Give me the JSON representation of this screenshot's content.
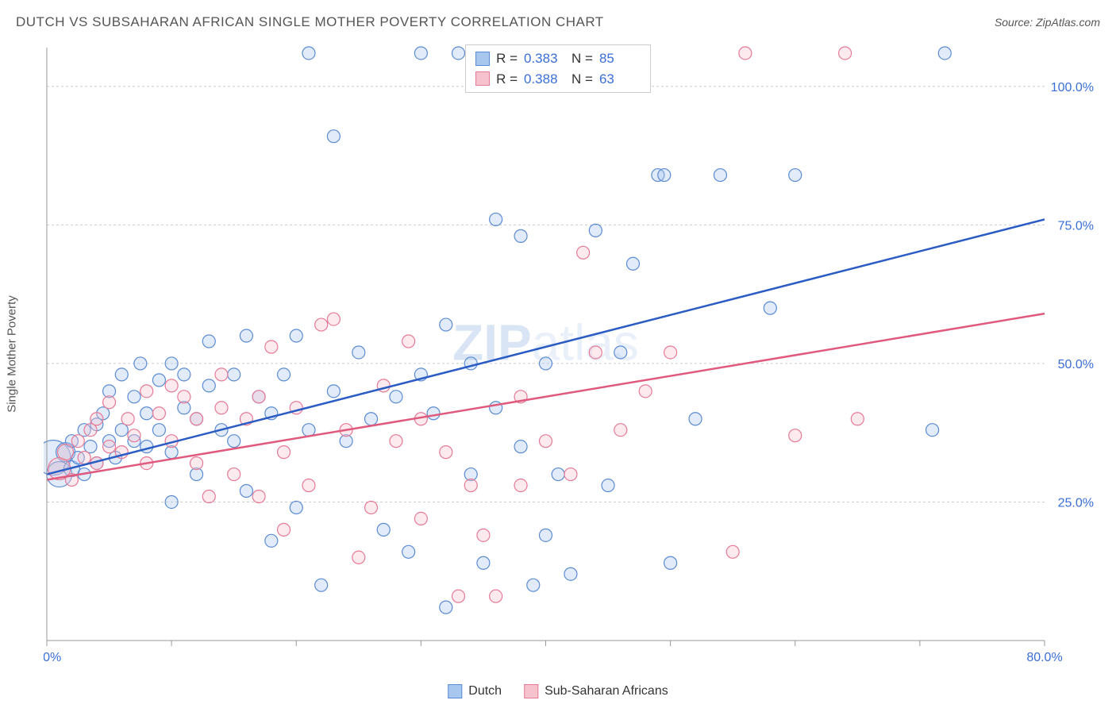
{
  "title": "DUTCH VS SUBSAHARAN AFRICAN SINGLE MOTHER POVERTY CORRELATION CHART",
  "source": "Source: ZipAtlas.com",
  "yaxis_label": "Single Mother Poverty",
  "watermark": {
    "bold": "ZIP",
    "light": "atlas"
  },
  "chart": {
    "type": "scatter",
    "background_color": "#ffffff",
    "grid_color": "#cccccc",
    "grid_dash": "3 3",
    "axis_color": "#999999",
    "xlim": [
      0,
      80
    ],
    "ylim": [
      0,
      107
    ],
    "xticks": [
      0,
      10,
      20,
      30,
      40,
      50,
      60,
      70,
      80
    ],
    "xtick_labels": {
      "0": "0.0%",
      "80": "80.0%"
    },
    "yticks": [
      25,
      50,
      75,
      100
    ],
    "ytick_labels": {
      "25": "25.0%",
      "50": "50.0%",
      "75": "75.0%",
      "100": "100.0%"
    },
    "label_color": "#3a6fd8",
    "label_fontsize": 16,
    "point_stroke_width": 1.2,
    "point_fill_opacity": 0.35,
    "series": [
      {
        "name": "Dutch",
        "fill": "#a8c7ee",
        "stroke": "#5b8bd4",
        "r_default": 8,
        "R": 0.383,
        "N": 85,
        "trend": {
          "x1": 0,
          "y1": 30,
          "x2": 80,
          "y2": 76,
          "color": "#2a5cc4"
        },
        "points": [
          {
            "x": 0.5,
            "y": 33,
            "r": 22
          },
          {
            "x": 1,
            "y": 30,
            "r": 16
          },
          {
            "x": 1.5,
            "y": 34,
            "r": 12
          },
          {
            "x": 2,
            "y": 31,
            "r": 10
          },
          {
            "x": 2,
            "y": 36
          },
          {
            "x": 2.5,
            "y": 33
          },
          {
            "x": 3,
            "y": 38
          },
          {
            "x": 3,
            "y": 30
          },
          {
            "x": 3.5,
            "y": 35
          },
          {
            "x": 4,
            "y": 39
          },
          {
            "x": 4,
            "y": 32
          },
          {
            "x": 4.5,
            "y": 41
          },
          {
            "x": 5,
            "y": 36
          },
          {
            "x": 5,
            "y": 45
          },
          {
            "x": 5.5,
            "y": 33
          },
          {
            "x": 6,
            "y": 48
          },
          {
            "x": 6,
            "y": 38
          },
          {
            "x": 7,
            "y": 36
          },
          {
            "x": 7,
            "y": 44
          },
          {
            "x": 7.5,
            "y": 50
          },
          {
            "x": 8,
            "y": 35
          },
          {
            "x": 8,
            "y": 41
          },
          {
            "x": 9,
            "y": 38
          },
          {
            "x": 9,
            "y": 47
          },
          {
            "x": 10,
            "y": 34
          },
          {
            "x": 10,
            "y": 50
          },
          {
            "x": 10,
            "y": 25
          },
          {
            "x": 11,
            "y": 42
          },
          {
            "x": 11,
            "y": 48
          },
          {
            "x": 12,
            "y": 30
          },
          {
            "x": 12,
            "y": 40
          },
          {
            "x": 13,
            "y": 46
          },
          {
            "x": 13,
            "y": 54
          },
          {
            "x": 14,
            "y": 38
          },
          {
            "x": 15,
            "y": 36
          },
          {
            "x": 15,
            "y": 48
          },
          {
            "x": 16,
            "y": 27
          },
          {
            "x": 16,
            "y": 55
          },
          {
            "x": 17,
            "y": 44
          },
          {
            "x": 18,
            "y": 18
          },
          {
            "x": 18,
            "y": 41
          },
          {
            "x": 19,
            "y": 48
          },
          {
            "x": 20,
            "y": 24
          },
          {
            "x": 20,
            "y": 55
          },
          {
            "x": 21,
            "y": 106
          },
          {
            "x": 21,
            "y": 38
          },
          {
            "x": 22,
            "y": 10
          },
          {
            "x": 23,
            "y": 91
          },
          {
            "x": 23,
            "y": 45
          },
          {
            "x": 24,
            "y": 36
          },
          {
            "x": 25,
            "y": 52
          },
          {
            "x": 26,
            "y": 40
          },
          {
            "x": 27,
            "y": 20
          },
          {
            "x": 28,
            "y": 44
          },
          {
            "x": 29,
            "y": 16
          },
          {
            "x": 30,
            "y": 48
          },
          {
            "x": 30,
            "y": 106
          },
          {
            "x": 31,
            "y": 41
          },
          {
            "x": 32,
            "y": 6
          },
          {
            "x": 32,
            "y": 57
          },
          {
            "x": 33,
            "y": 106
          },
          {
            "x": 34,
            "y": 50
          },
          {
            "x": 34,
            "y": 30
          },
          {
            "x": 35,
            "y": 14
          },
          {
            "x": 36,
            "y": 76
          },
          {
            "x": 36,
            "y": 42
          },
          {
            "x": 38,
            "y": 73
          },
          {
            "x": 38,
            "y": 35
          },
          {
            "x": 39,
            "y": 10
          },
          {
            "x": 40,
            "y": 50
          },
          {
            "x": 40,
            "y": 19
          },
          {
            "x": 41,
            "y": 30
          },
          {
            "x": 42,
            "y": 12
          },
          {
            "x": 44,
            "y": 74
          },
          {
            "x": 45,
            "y": 28
          },
          {
            "x": 46,
            "y": 52
          },
          {
            "x": 47,
            "y": 68
          },
          {
            "x": 49,
            "y": 84
          },
          {
            "x": 49.5,
            "y": 84
          },
          {
            "x": 50,
            "y": 14
          },
          {
            "x": 52,
            "y": 40
          },
          {
            "x": 54,
            "y": 84
          },
          {
            "x": 58,
            "y": 60
          },
          {
            "x": 60,
            "y": 84
          },
          {
            "x": 71,
            "y": 38
          },
          {
            "x": 72,
            "y": 106
          }
        ]
      },
      {
        "name": "Sub-Saharan Africans",
        "fill": "#f5c2cd",
        "stroke": "#e67a96",
        "r_default": 8,
        "R": 0.388,
        "N": 63,
        "trend": {
          "x1": 0,
          "y1": 29,
          "x2": 80,
          "y2": 59,
          "color": "#e05a7e"
        },
        "points": [
          {
            "x": 1,
            "y": 31,
            "r": 14
          },
          {
            "x": 1.5,
            "y": 34,
            "r": 10
          },
          {
            "x": 2,
            "y": 29
          },
          {
            "x": 2.5,
            "y": 36
          },
          {
            "x": 3,
            "y": 33
          },
          {
            "x": 3.5,
            "y": 38
          },
          {
            "x": 4,
            "y": 32
          },
          {
            "x": 4,
            "y": 40
          },
          {
            "x": 5,
            "y": 35
          },
          {
            "x": 5,
            "y": 43
          },
          {
            "x": 6,
            "y": 34
          },
          {
            "x": 6.5,
            "y": 40
          },
          {
            "x": 7,
            "y": 37
          },
          {
            "x": 8,
            "y": 32
          },
          {
            "x": 8,
            "y": 45
          },
          {
            "x": 9,
            "y": 41
          },
          {
            "x": 10,
            "y": 36
          },
          {
            "x": 10,
            "y": 46
          },
          {
            "x": 11,
            "y": 44
          },
          {
            "x": 12,
            "y": 32
          },
          {
            "x": 12,
            "y": 40
          },
          {
            "x": 13,
            "y": 26
          },
          {
            "x": 14,
            "y": 42
          },
          {
            "x": 14,
            "y": 48
          },
          {
            "x": 15,
            "y": 30
          },
          {
            "x": 16,
            "y": 40
          },
          {
            "x": 17,
            "y": 26
          },
          {
            "x": 17,
            "y": 44
          },
          {
            "x": 18,
            "y": 53
          },
          {
            "x": 19,
            "y": 34
          },
          {
            "x": 19,
            "y": 20
          },
          {
            "x": 20,
            "y": 42
          },
          {
            "x": 21,
            "y": 28
          },
          {
            "x": 22,
            "y": 57
          },
          {
            "x": 23,
            "y": 58
          },
          {
            "x": 24,
            "y": 38
          },
          {
            "x": 25,
            "y": 15
          },
          {
            "x": 26,
            "y": 24
          },
          {
            "x": 27,
            "y": 46
          },
          {
            "x": 28,
            "y": 36
          },
          {
            "x": 29,
            "y": 54
          },
          {
            "x": 30,
            "y": 22
          },
          {
            "x": 30,
            "y": 40
          },
          {
            "x": 32,
            "y": 34
          },
          {
            "x": 33,
            "y": 8
          },
          {
            "x": 34,
            "y": 28
          },
          {
            "x": 35,
            "y": 19
          },
          {
            "x": 36,
            "y": 8
          },
          {
            "x": 38,
            "y": 44
          },
          {
            "x": 38,
            "y": 28
          },
          {
            "x": 40,
            "y": 36
          },
          {
            "x": 42,
            "y": 30
          },
          {
            "x": 43,
            "y": 70
          },
          {
            "x": 44,
            "y": 52
          },
          {
            "x": 46,
            "y": 38
          },
          {
            "x": 48,
            "y": 45
          },
          {
            "x": 50,
            "y": 52
          },
          {
            "x": 55,
            "y": 16
          },
          {
            "x": 56,
            "y": 106
          },
          {
            "x": 60,
            "y": 37
          },
          {
            "x": 64,
            "y": 106
          },
          {
            "x": 65,
            "y": 40
          }
        ]
      }
    ]
  },
  "legend_stats": {
    "rows": [
      {
        "swatch_fill": "#a8c7ee",
        "swatch_stroke": "#5b8bd4",
        "R_label": "R =",
        "R_value": "0.383",
        "N_label": "N =",
        "N_value": "85"
      },
      {
        "swatch_fill": "#f5c2cd",
        "swatch_stroke": "#e67a96",
        "R_label": "R =",
        "R_value": "0.388",
        "N_label": "N =",
        "N_value": "63"
      }
    ]
  },
  "bottom_legend": [
    {
      "swatch_fill": "#a8c7ee",
      "swatch_stroke": "#5b8bd4",
      "label": "Dutch"
    },
    {
      "swatch_fill": "#f5c2cd",
      "swatch_stroke": "#e67a96",
      "label": "Sub-Saharan Africans"
    }
  ]
}
